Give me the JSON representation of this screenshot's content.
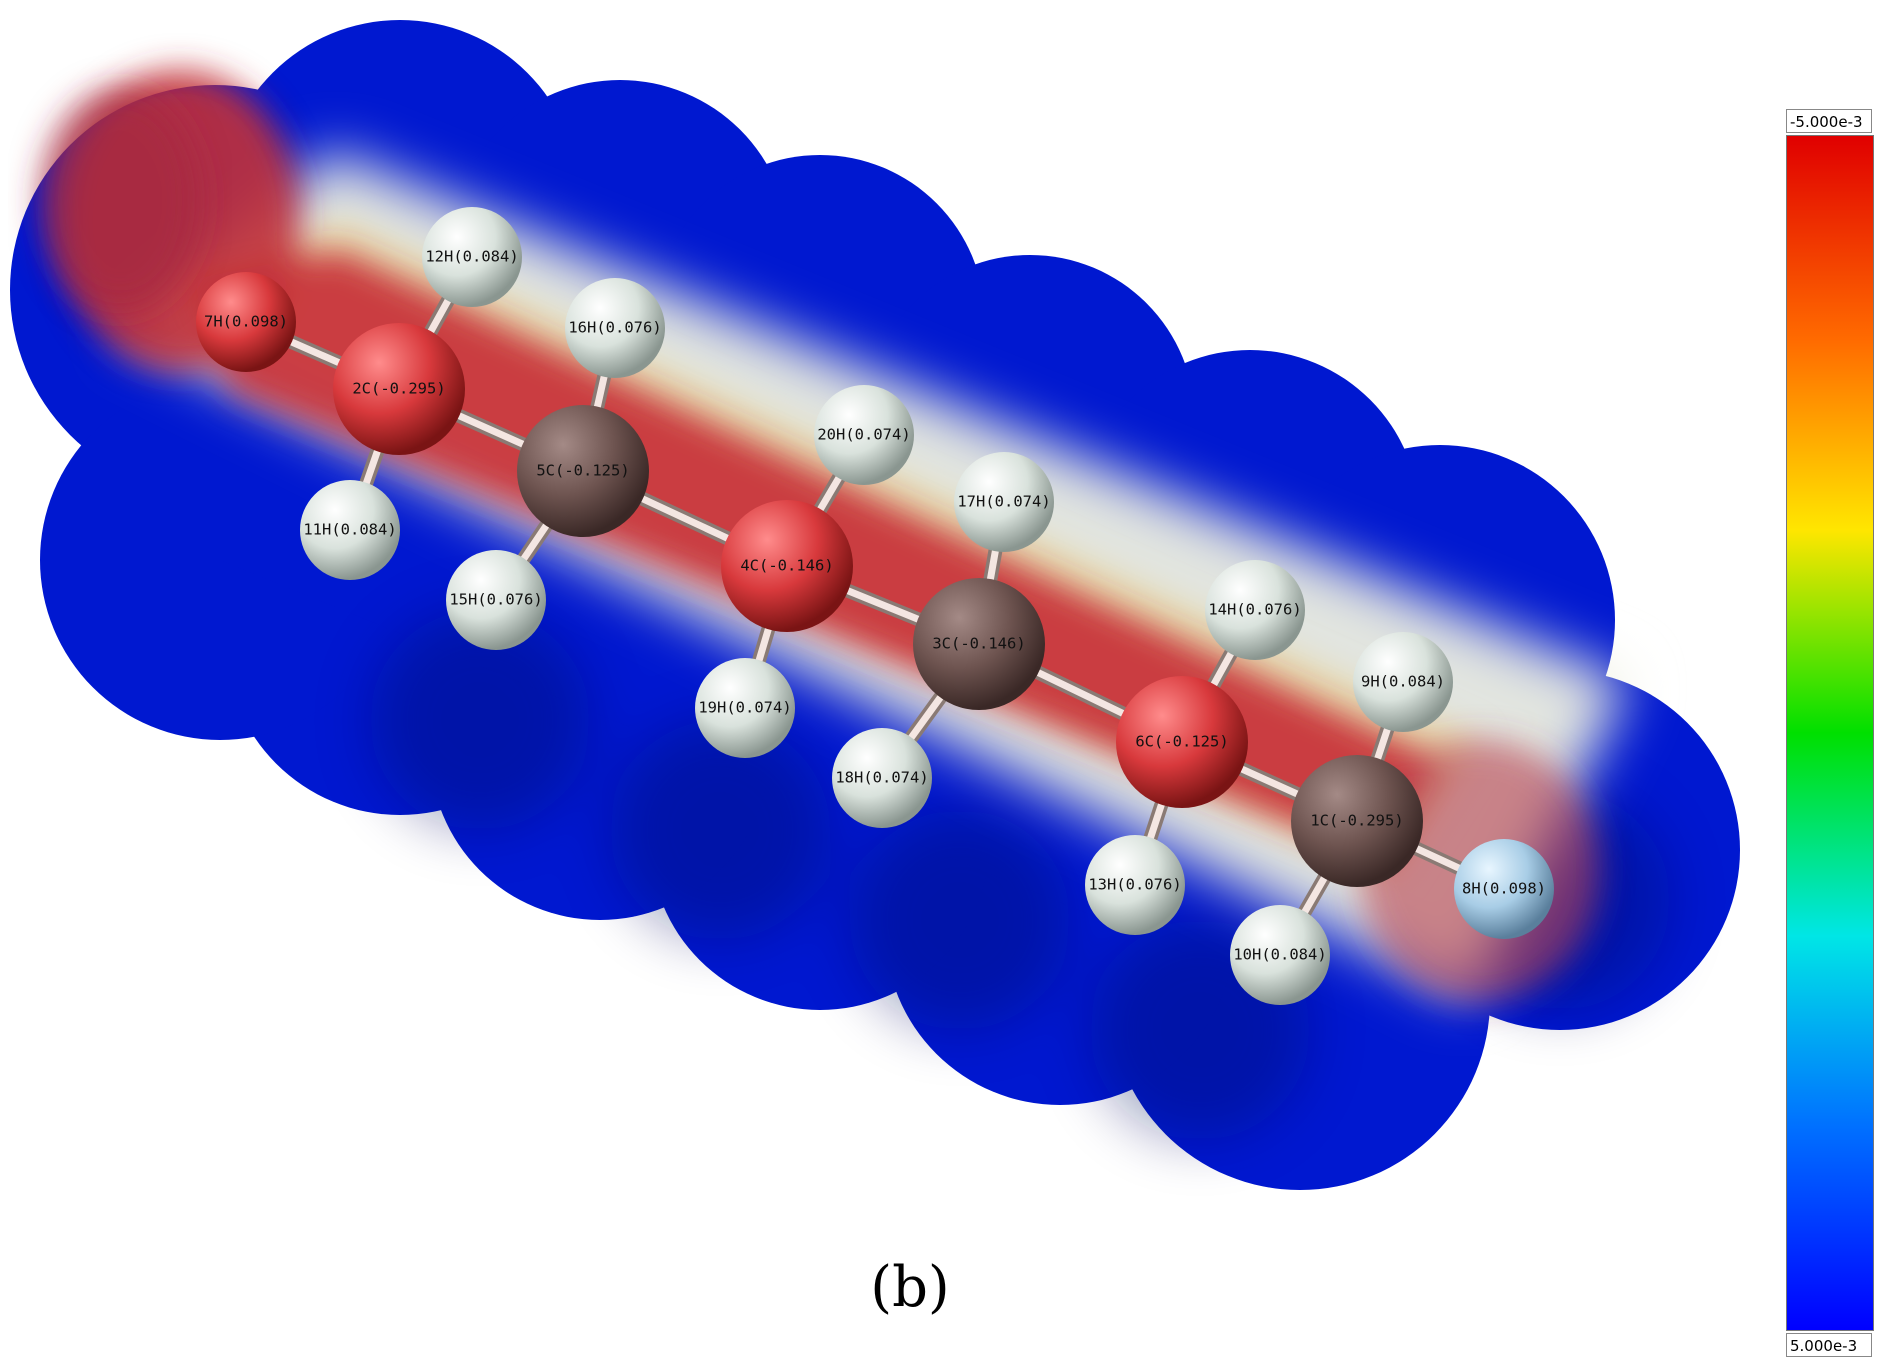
{
  "figure": {
    "panel_label": "(b)"
  },
  "colorbar": {
    "top_label": "-5.000e-3",
    "bottom_label": "5.000e-3",
    "gradient_colors": [
      "#e00000",
      "#ff6a00",
      "#ffe600",
      "#00e000",
      "#00e6e6",
      "#0070ff",
      "#0000ff"
    ]
  },
  "surface_colors": {
    "positive": "#0018d8",
    "negative": "#c8303a",
    "neutral": "#f2f2e6"
  },
  "atoms": [
    {
      "id": "7H",
      "label": "7H(0.098)",
      "element": "H",
      "shade": "red"
    },
    {
      "id": "12H",
      "label": "12H(0.084)",
      "element": "H",
      "shade": "white"
    },
    {
      "id": "2C",
      "label": "2C(-0.295)",
      "element": "C",
      "shade": "red"
    },
    {
      "id": "11H",
      "label": "11H(0.084)",
      "element": "H",
      "shade": "white"
    },
    {
      "id": "16H",
      "label": "16H(0.076)",
      "element": "H",
      "shade": "white"
    },
    {
      "id": "5C",
      "label": "5C(-0.125)",
      "element": "C",
      "shade": "brown"
    },
    {
      "id": "15H",
      "label": "15H(0.076)",
      "element": "H",
      "shade": "white"
    },
    {
      "id": "20H",
      "label": "20H(0.074)",
      "element": "H",
      "shade": "white"
    },
    {
      "id": "4C",
      "label": "4C(-0.146)",
      "element": "C",
      "shade": "red"
    },
    {
      "id": "19H",
      "label": "19H(0.074)",
      "element": "H",
      "shade": "white"
    },
    {
      "id": "17H",
      "label": "17H(0.074)",
      "element": "H",
      "shade": "white"
    },
    {
      "id": "3C",
      "label": "3C(-0.146)",
      "element": "C",
      "shade": "brown"
    },
    {
      "id": "18H",
      "label": "18H(0.074)",
      "element": "H",
      "shade": "white"
    },
    {
      "id": "14H",
      "label": "14H(0.076)",
      "element": "H",
      "shade": "white"
    },
    {
      "id": "6C",
      "label": "6C(-0.125)",
      "element": "C",
      "shade": "red"
    },
    {
      "id": "13H",
      "label": "13H(0.076)",
      "element": "H",
      "shade": "white"
    },
    {
      "id": "9H",
      "label": "9H(0.084)",
      "element": "H",
      "shade": "white"
    },
    {
      "id": "1C",
      "label": "1C(-0.295)",
      "element": "C",
      "shade": "brown"
    },
    {
      "id": "10H",
      "label": "10H(0.084)",
      "element": "H",
      "shade": "white"
    },
    {
      "id": "8H",
      "label": "8H(0.098)",
      "element": "H",
      "shade": "blue"
    }
  ],
  "bonds": [
    [
      "7H",
      "2C"
    ],
    [
      "12H",
      "2C"
    ],
    [
      "11H",
      "2C"
    ],
    [
      "2C",
      "5C"
    ],
    [
      "16H",
      "5C"
    ],
    [
      "15H",
      "5C"
    ],
    [
      "5C",
      "4C"
    ],
    [
      "20H",
      "4C"
    ],
    [
      "19H",
      "4C"
    ],
    [
      "4C",
      "3C"
    ],
    [
      "17H",
      "3C"
    ],
    [
      "18H",
      "3C"
    ],
    [
      "3C",
      "6C"
    ],
    [
      "14H",
      "6C"
    ],
    [
      "13H",
      "6C"
    ],
    [
      "6C",
      "1C"
    ],
    [
      "9H",
      "1C"
    ],
    [
      "10H",
      "1C"
    ],
    [
      "1C",
      "8H"
    ]
  ]
}
